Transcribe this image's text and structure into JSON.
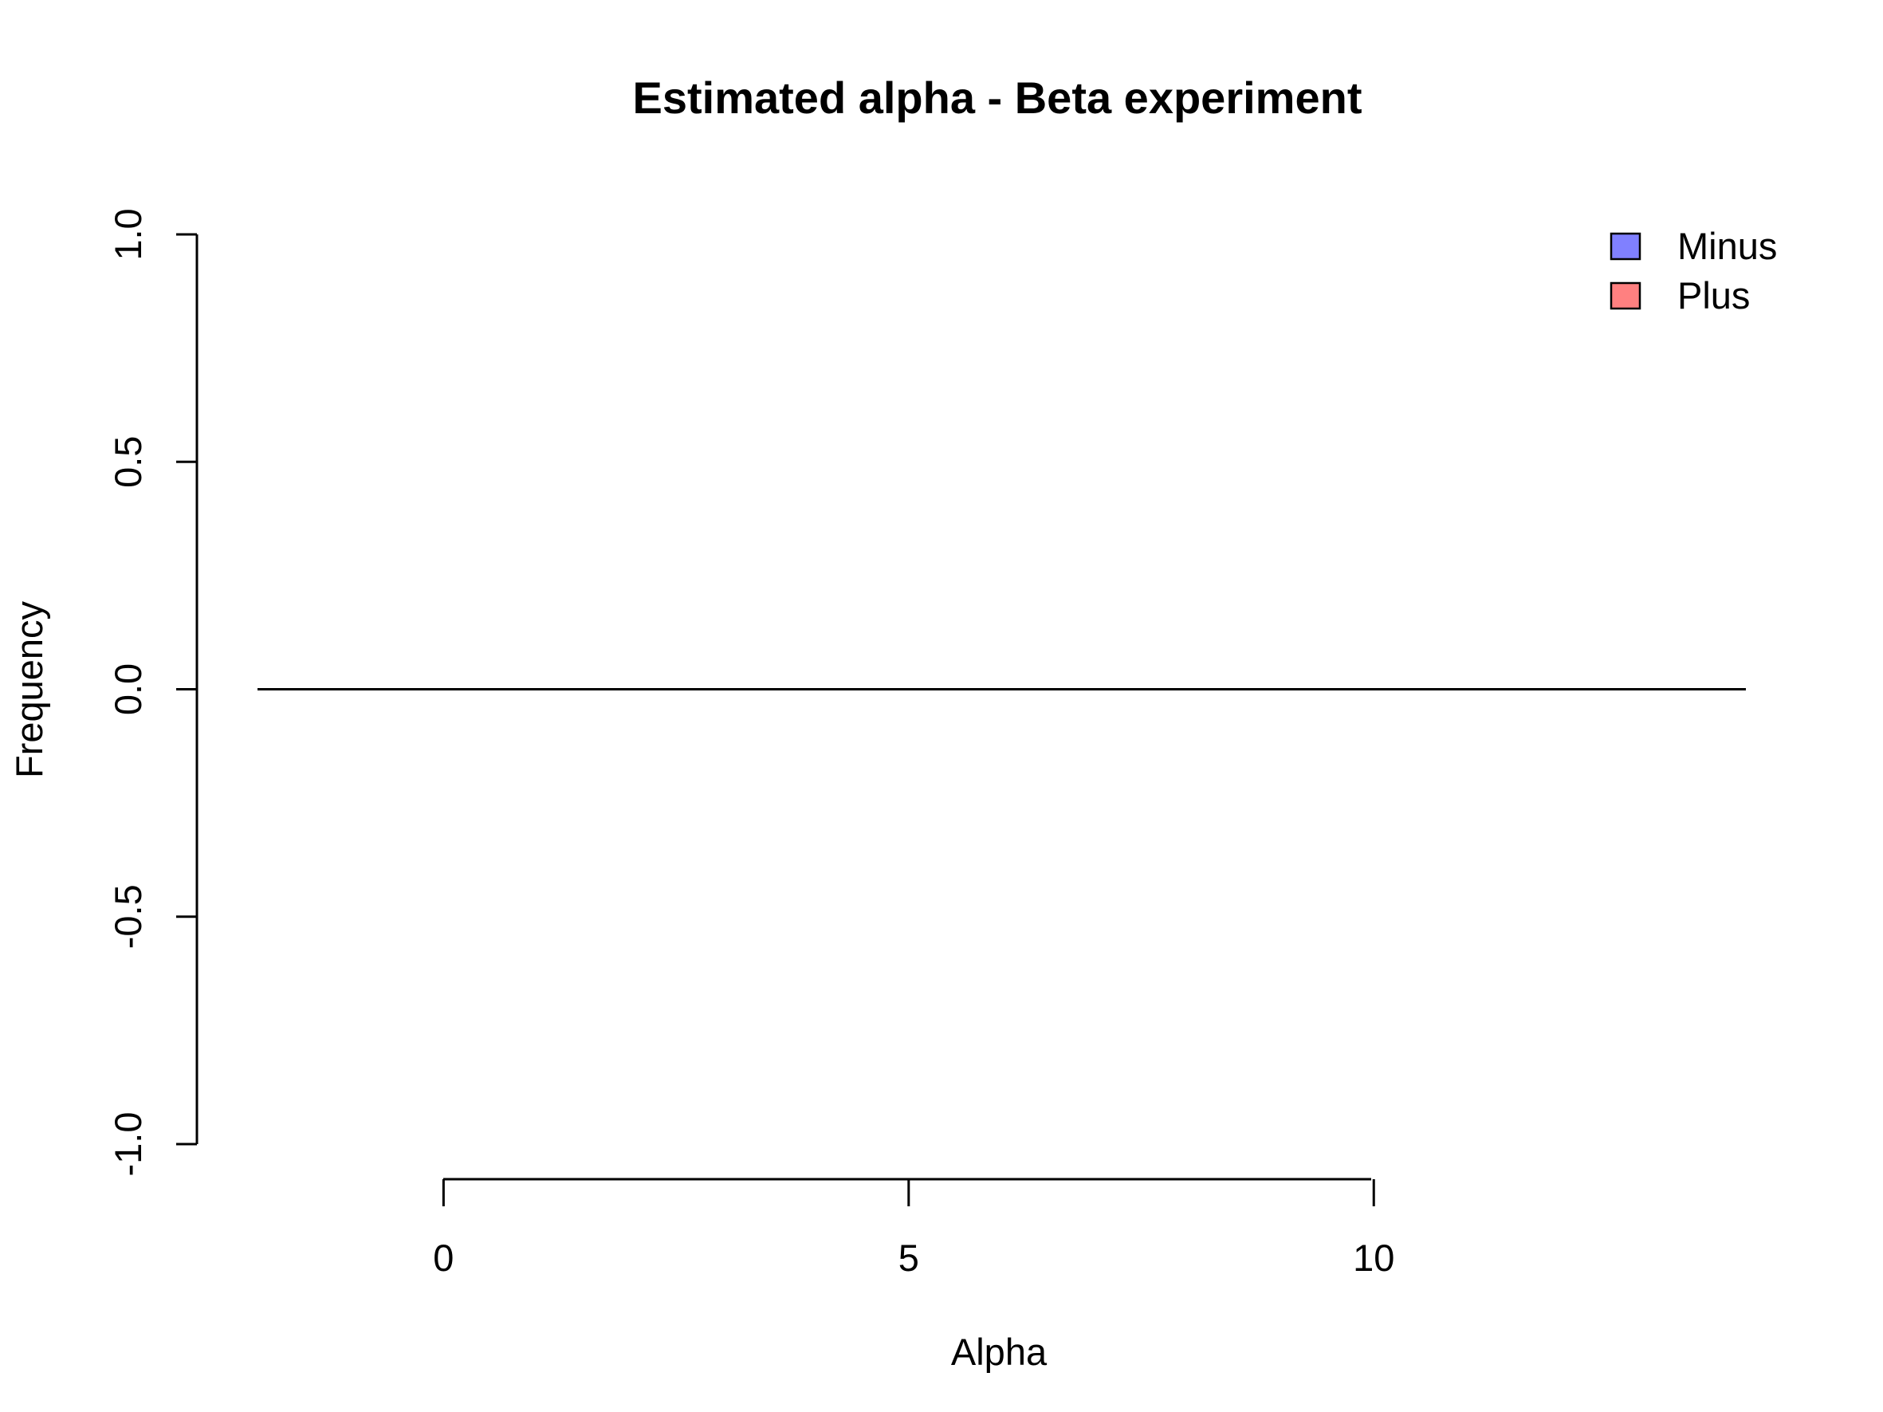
{
  "chart_data": {
    "type": "line",
    "title": "Estimated alpha - Beta experiment",
    "xlabel": "Alpha",
    "ylabel": "Frequency",
    "xlim": [
      -2,
      14
    ],
    "ylim": [
      -1,
      1
    ],
    "x_ticks": [
      0,
      5,
      10
    ],
    "x_tick_labels": [
      "0",
      "5",
      "10"
    ],
    "y_ticks": [
      -1,
      -0.5,
      0,
      0.5,
      1
    ],
    "y_tick_labels": [
      "-1.0",
      "-0.5",
      "0.0",
      "0.5",
      "1.0"
    ],
    "grid": false,
    "legend_position": "top-right",
    "legend": [
      {
        "label": "Minus",
        "color": "#8080ff"
      },
      {
        "label": "Plus",
        "color": "#ff8080"
      }
    ],
    "series": [
      {
        "x": [
          -2,
          14
        ],
        "y": [
          0,
          0
        ],
        "color": "#000000"
      }
    ]
  }
}
